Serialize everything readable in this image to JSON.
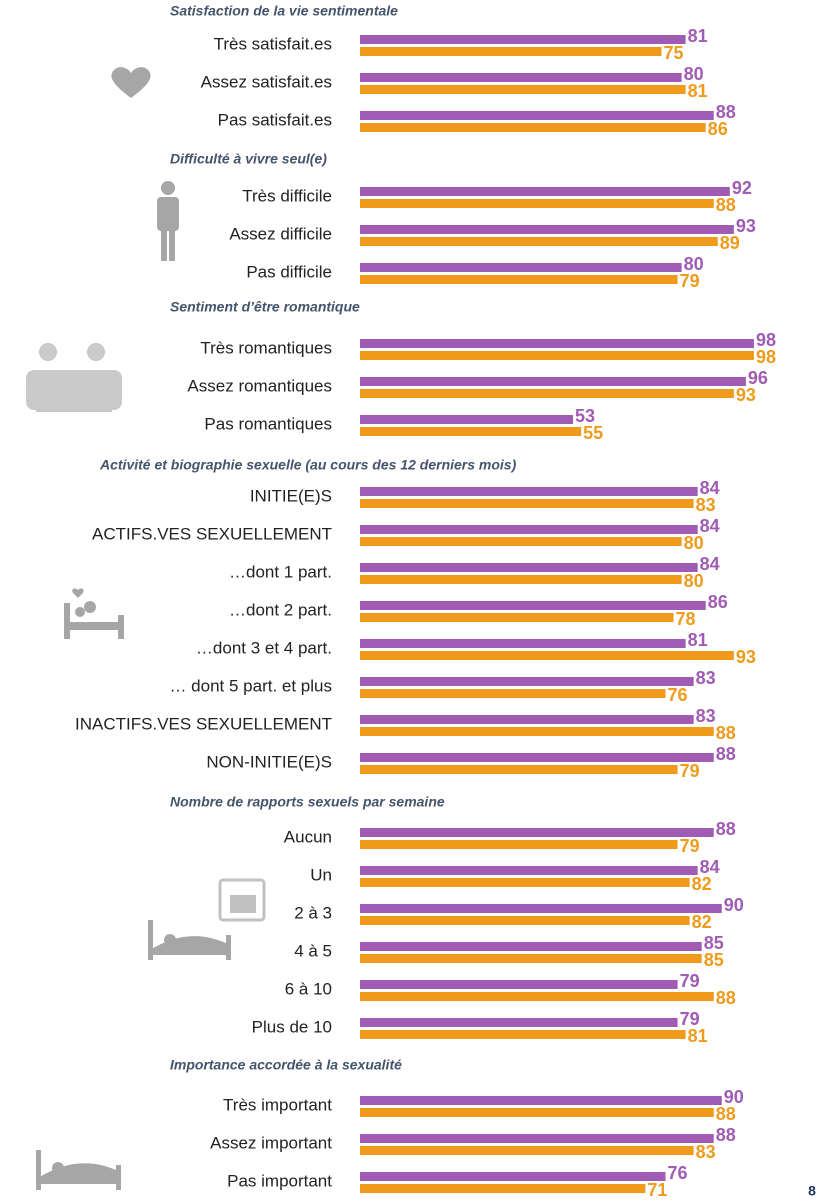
{
  "chart_data": [
    {
      "type": "bar",
      "title": "Satisfaction de la vie sentimentale",
      "categories": [
        "Très satisfait.es",
        "Assez satisfait.es",
        "Pas satisfait.es"
      ],
      "series": [
        {
          "color": "#a05cb5",
          "values": [
            81,
            80,
            88
          ]
        },
        {
          "color": "#f09a1c",
          "values": [
            75,
            81,
            86
          ]
        }
      ],
      "xlim": [
        0,
        100
      ]
    },
    {
      "type": "bar",
      "title": "Difficulté à vivre seul(e)",
      "categories": [
        "Très difficile",
        "Assez difficile",
        "Pas difficile"
      ],
      "series": [
        {
          "color": "#a05cb5",
          "values": [
            92,
            93,
            80
          ]
        },
        {
          "color": "#f09a1c",
          "values": [
            88,
            89,
            79
          ]
        }
      ],
      "xlim": [
        0,
        100
      ]
    },
    {
      "type": "bar",
      "title": "Sentiment d’être romantique",
      "categories": [
        "Très romantiques",
        "Assez romantiques",
        "Pas romantiques"
      ],
      "series": [
        {
          "color": "#a05cb5",
          "values": [
            98,
            96,
            53
          ]
        },
        {
          "color": "#f09a1c",
          "values": [
            98,
            93,
            55
          ]
        }
      ],
      "xlim": [
        0,
        100
      ]
    },
    {
      "type": "bar",
      "title": "Activité et biographie sexuelle (au cours des 12 derniers mois)",
      "categories": [
        "INITIE(E)S",
        "ACTIFS.VES SEXUELLEMENT",
        "…dont 1 part.",
        "…dont 2 part.",
        "…dont 3 et 4 part.",
        "… dont 5 part. et plus",
        "INACTIFS.VES SEXUELLEMENT",
        "NON-INITIE(E)S"
      ],
      "series": [
        {
          "color": "#a05cb5",
          "values": [
            84,
            84,
            84,
            86,
            81,
            83,
            83,
            88
          ]
        },
        {
          "color": "#f09a1c",
          "values": [
            83,
            80,
            80,
            78,
            93,
            76,
            88,
            79
          ]
        }
      ],
      "xlim": [
        0,
        100
      ]
    },
    {
      "type": "bar",
      "title": "Nombre de rapports sexuels par semaine",
      "categories": [
        "Aucun",
        "Un",
        "2 à 3",
        "4 à 5",
        "6 à 10",
        "Plus de 10"
      ],
      "series": [
        {
          "color": "#a05cb5",
          "values": [
            88,
            84,
            90,
            85,
            79,
            79
          ]
        },
        {
          "color": "#f09a1c",
          "values": [
            79,
            82,
            82,
            85,
            88,
            81
          ]
        }
      ],
      "xlim": [
        0,
        100
      ]
    },
    {
      "type": "bar",
      "title": "Importance accordée à la sexualité",
      "categories": [
        "Très important",
        "Assez important",
        "Pas important"
      ],
      "series": [
        {
          "color": "#a05cb5",
          "values": [
            90,
            88,
            76
          ]
        },
        {
          "color": "#f09a1c",
          "values": [
            88,
            83,
            71
          ]
        }
      ],
      "xlim": [
        0,
        100
      ]
    }
  ],
  "page_number": 8
}
